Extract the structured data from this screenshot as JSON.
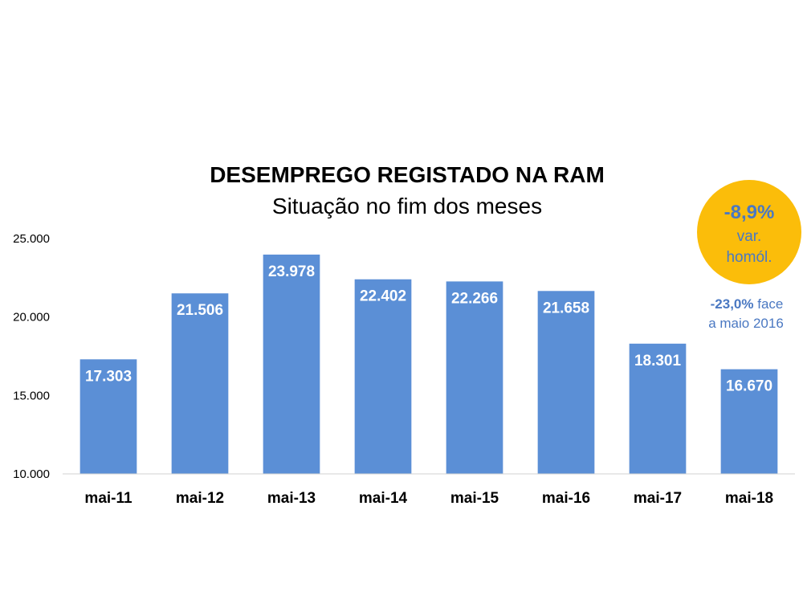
{
  "chart_data": {
    "type": "bar",
    "title": "DESEMPREGO REGISTADO NA RAM",
    "subtitle": "Situação no fim dos meses",
    "categories": [
      "mai-11",
      "mai-12",
      "mai-13",
      "mai-14",
      "mai-15",
      "mai-16",
      "mai-17",
      "mai-18"
    ],
    "values": [
      17303,
      21506,
      23978,
      22402,
      22266,
      21658,
      18301,
      16670
    ],
    "value_labels": [
      "17.303",
      "21.506",
      "23.978",
      "22.402",
      "22.266",
      "21.658",
      "18.301",
      "16.670"
    ],
    "ylim": [
      10000,
      25000
    ],
    "yticks": [
      10000,
      15000,
      20000,
      25000
    ],
    "ytick_labels": [
      "10.000",
      "15.000",
      "20.000",
      "25.000"
    ],
    "grid": false,
    "bar_color": "#5b8fd6"
  },
  "badge": {
    "pct": "-8,9%",
    "line1": "var.",
    "line2": "homól.",
    "color": "#fbbd0a"
  },
  "note": {
    "pct": "-23,0%",
    "line1_rest": " face",
    "line2": "a maio 2016",
    "color": "#4a78c2"
  }
}
